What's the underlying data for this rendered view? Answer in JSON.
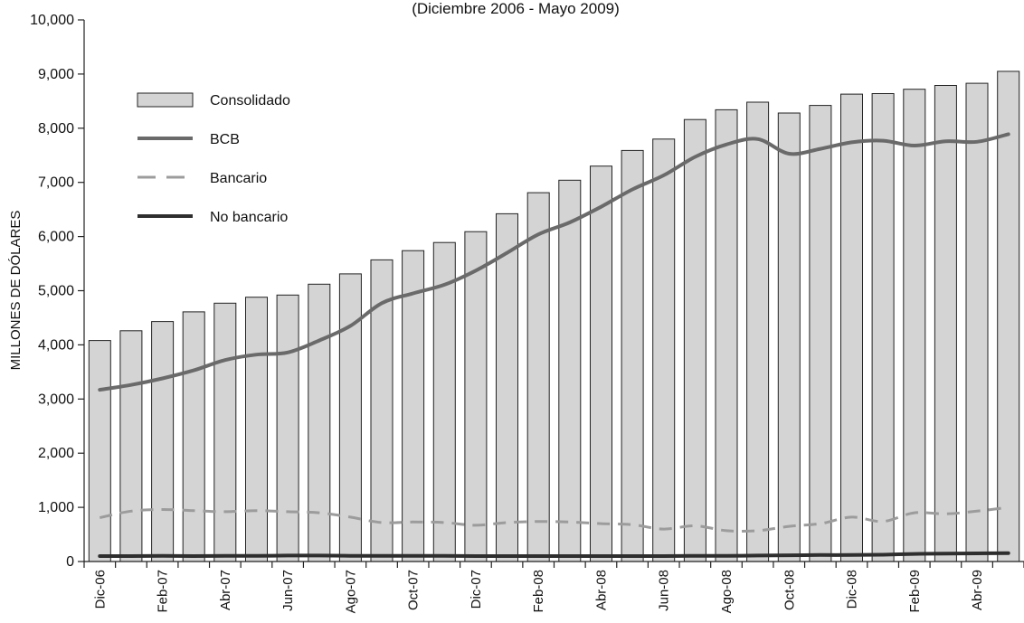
{
  "chart_data": {
    "type": "bar",
    "subtitle": "(Diciembre 2006 - Mayo 2009)",
    "ylabel": "MILLONES DE DÓLARES",
    "xlabel": "",
    "ylim": [
      0,
      10000
    ],
    "yticks": [
      0,
      1000,
      2000,
      3000,
      4000,
      5000,
      6000,
      7000,
      8000,
      9000,
      10000
    ],
    "ytick_labels": [
      "0",
      "1,000",
      "2,000",
      "3,000",
      "4,000",
      "5,000",
      "6,000",
      "7,000",
      "8,000",
      "9,000",
      "10,000"
    ],
    "categories": [
      "Dic-06",
      "Ene-07",
      "Feb-07",
      "Mar-07",
      "Abr-07",
      "May-07",
      "Jun-07",
      "Jul-07",
      "Ago-07",
      "Sep-07",
      "Oct-07",
      "Nov-07",
      "Dic-07",
      "Ene-08",
      "Feb-08",
      "Mar-08",
      "Abr-08",
      "May-08",
      "Jun-08",
      "Jul-08",
      "Ago-08",
      "Sep-08",
      "Oct-08",
      "Nov-08",
      "Dic-08",
      "Ene-09",
      "Feb-09",
      "Mar-09",
      "Abr-09",
      "May-09"
    ],
    "xtick_labels": [
      "Dic-06",
      "",
      "Feb-07",
      "",
      "Abr-07",
      "",
      "Jun-07",
      "",
      "Ago-07",
      "",
      "Oct-07",
      "",
      "Dic-07",
      "",
      "Feb-08",
      "",
      "Abr-08",
      "",
      "Jun-08",
      "",
      "Ago-08",
      "",
      "Oct-08",
      "",
      "Dic-08",
      "",
      "Feb-09",
      "",
      "Abr-09",
      ""
    ],
    "legend_position": "top-left",
    "grid": false,
    "series": [
      {
        "name": "Consolidado",
        "kind": "bar",
        "color": "#d4d4d4",
        "values": [
          4080,
          4260,
          4430,
          4610,
          4770,
          4880,
          4920,
          5120,
          5310,
          5570,
          5740,
          5890,
          6090,
          6420,
          6810,
          7040,
          7300,
          7590,
          7800,
          8160,
          8340,
          8480,
          8280,
          8420,
          8630,
          8640,
          8720,
          8790,
          8830,
          9050
        ]
      },
      {
        "name": "BCB",
        "kind": "line",
        "color": "#6a6a6a",
        "dash": "solid",
        "values": [
          3170,
          3260,
          3380,
          3530,
          3720,
          3820,
          3860,
          4080,
          4350,
          4770,
          4950,
          5110,
          5370,
          5700,
          6040,
          6260,
          6550,
          6870,
          7130,
          7470,
          7700,
          7800,
          7530,
          7620,
          7740,
          7770,
          7680,
          7760,
          7750,
          7890
        ]
      },
      {
        "name": "Bancario",
        "kind": "line",
        "color": "#9c9c9c",
        "dash": "dashed",
        "values": [
          810,
          930,
          960,
          940,
          920,
          940,
          920,
          900,
          820,
          720,
          730,
          720,
          670,
          720,
          740,
          730,
          700,
          680,
          600,
          660,
          570,
          570,
          650,
          700,
          820,
          740,
          900,
          880,
          930,
          1000
        ]
      },
      {
        "name": "No bancario",
        "kind": "line",
        "color": "#2e2e2e",
        "dash": "solid",
        "values": [
          100,
          100,
          105,
          100,
          105,
          105,
          110,
          110,
          105,
          105,
          105,
          105,
          100,
          100,
          100,
          100,
          100,
          100,
          100,
          105,
          105,
          110,
          115,
          120,
          120,
          125,
          140,
          145,
          150,
          155
        ]
      }
    ]
  }
}
